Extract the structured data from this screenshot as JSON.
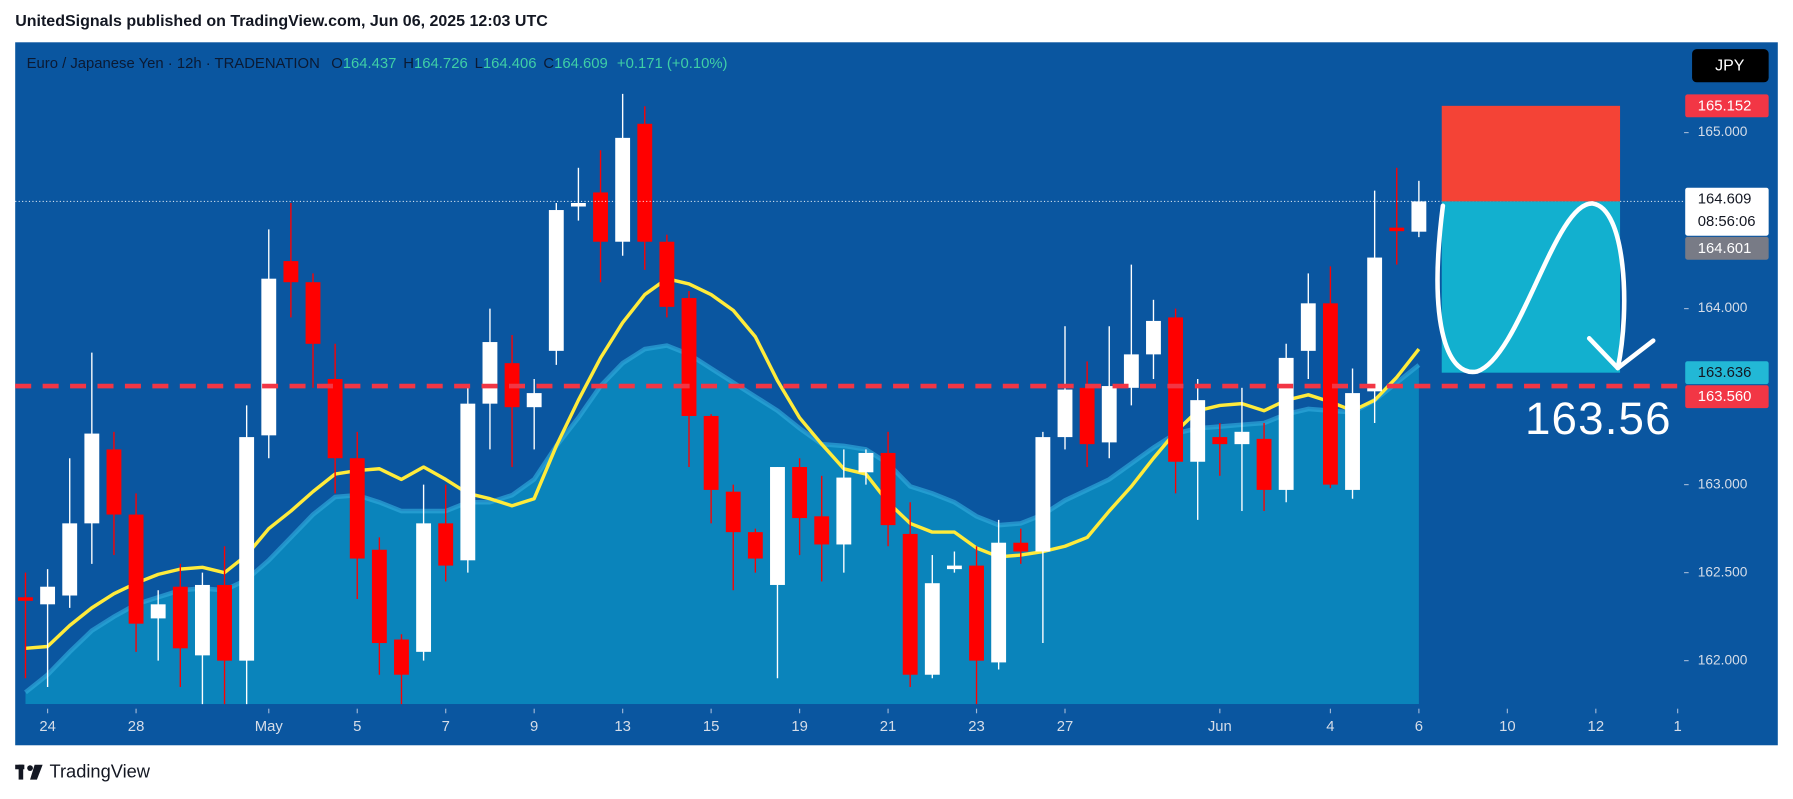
{
  "header": "UnitedSignals published on TradingView.com, Jun 06, 2025 12:03 UTC",
  "footer": "TradingView",
  "chart_data": {
    "type": "candlestick",
    "title": "Euro / Japanese Yen · 12h · TRADENATION",
    "ohlc_legend": [
      {
        "key": "O",
        "value": "164.437"
      },
      {
        "key": "H",
        "value": "164.726"
      },
      {
        "key": "L",
        "value": "164.406"
      },
      {
        "key": "C",
        "value": "164.609"
      }
    ],
    "change": "+0.171 (+0.10%)",
    "currency": "JPY",
    "up_color": "#ffffff",
    "down_color": "#ff0000",
    "open": [
      162.36,
      162.32,
      162.37,
      162.78,
      163.2,
      162.83,
      162.24,
      162.42,
      162.03,
      162.43,
      162.0,
      163.28,
      164.27,
      164.15,
      163.6,
      163.15,
      162.63,
      162.12,
      162.05,
      162.78,
      162.57,
      163.46,
      163.69,
      163.44,
      163.76,
      164.58,
      164.66,
      164.38,
      165.05,
      164.38,
      164.06,
      163.39,
      162.96,
      162.73,
      162.43,
      163.1,
      162.82,
      162.66,
      163.07,
      163.18,
      162.72,
      161.92,
      162.52,
      162.54,
      161.99,
      162.67,
      162.62,
      163.27,
      163.55,
      163.24,
      163.55,
      163.74,
      163.95,
      163.13,
      163.27,
      163.23,
      163.26,
      162.97,
      163.76,
      164.03,
      162.97,
      163.53,
      164.46,
      164.437
    ],
    "high": [
      162.5,
      162.52,
      163.15,
      163.75,
      163.3,
      162.95,
      162.4,
      162.55,
      162.5,
      162.65,
      163.45,
      164.45,
      164.6,
      164.2,
      163.8,
      163.3,
      162.7,
      162.15,
      163.0,
      163.0,
      163.55,
      164.0,
      163.85,
      163.6,
      164.6,
      164.8,
      164.9,
      165.22,
      165.15,
      164.42,
      164.1,
      163.4,
      163.0,
      162.75,
      163.1,
      163.15,
      163.05,
      163.2,
      163.2,
      163.3,
      162.9,
      162.6,
      162.62,
      162.65,
      162.8,
      162.75,
      163.3,
      163.9,
      163.7,
      163.9,
      164.25,
      164.05,
      164.0,
      163.6,
      163.35,
      163.55,
      163.35,
      163.8,
      164.2,
      164.24,
      163.66,
      164.67,
      164.8,
      164.726
    ],
    "low": [
      161.9,
      161.85,
      162.3,
      162.55,
      162.6,
      162.05,
      162.0,
      161.85,
      161.75,
      161.75,
      161.75,
      163.15,
      163.95,
      163.55,
      162.95,
      162.35,
      161.92,
      161.75,
      162.0,
      162.45,
      162.5,
      163.2,
      163.1,
      163.2,
      163.68,
      164.5,
      164.15,
      164.3,
      164.22,
      163.95,
      163.1,
      162.78,
      162.4,
      162.5,
      161.9,
      162.6,
      162.45,
      162.5,
      163.0,
      162.65,
      161.85,
      161.9,
      162.5,
      161.75,
      161.95,
      162.55,
      162.1,
      163.2,
      163.1,
      163.15,
      163.45,
      163.6,
      162.95,
      162.8,
      163.05,
      162.85,
      162.85,
      162.9,
      163.6,
      162.98,
      162.92,
      163.35,
      164.25,
      164.406
    ],
    "close": [
      162.34,
      162.42,
      162.78,
      163.29,
      162.83,
      162.21,
      162.32,
      162.07,
      162.43,
      162.0,
      163.27,
      164.17,
      164.15,
      163.8,
      163.15,
      162.58,
      162.1,
      161.92,
      162.78,
      162.54,
      163.46,
      163.81,
      163.44,
      163.52,
      164.56,
      164.6,
      164.38,
      164.97,
      164.38,
      164.01,
      163.39,
      162.97,
      162.73,
      162.58,
      163.1,
      162.81,
      162.66,
      163.04,
      163.18,
      162.77,
      161.92,
      162.44,
      162.54,
      162.0,
      162.67,
      162.62,
      163.27,
      163.54,
      163.23,
      163.56,
      163.74,
      163.93,
      163.13,
      163.48,
      163.23,
      163.3,
      162.97,
      163.72,
      164.03,
      163.0,
      163.52,
      164.29,
      164.44,
      164.609
    ],
    "lines": [
      {
        "color": "#ffeb3b",
        "values": [
          162.07,
          162.08,
          162.2,
          162.3,
          162.38,
          162.44,
          162.49,
          162.52,
          162.53,
          162.5,
          162.6,
          162.75,
          162.85,
          162.96,
          163.06,
          163.08,
          163.09,
          163.03,
          163.1,
          163.03,
          162.95,
          162.92,
          162.88,
          162.92,
          163.22,
          163.48,
          163.72,
          163.92,
          164.08,
          164.17,
          164.14,
          164.08,
          163.99,
          163.84,
          163.59,
          163.38,
          163.23,
          163.09,
          163.06,
          162.9,
          162.78,
          162.73,
          162.73,
          162.64,
          162.59,
          162.6,
          162.62,
          162.65,
          162.7,
          162.85,
          162.99,
          163.15,
          163.3,
          163.42,
          163.45,
          163.46,
          163.42,
          163.48,
          163.51,
          163.47,
          163.42,
          163.48,
          163.61,
          163.77
        ]
      },
      {
        "color": "#0b8cc0",
        "fill": true,
        "values": [
          161.82,
          161.92,
          162.05,
          162.17,
          162.25,
          162.32,
          162.36,
          162.4,
          162.41,
          162.4,
          162.46,
          162.57,
          162.7,
          162.83,
          162.93,
          162.94,
          162.9,
          162.85,
          162.85,
          162.85,
          162.9,
          162.9,
          162.94,
          163.03,
          163.22,
          163.38,
          163.56,
          163.69,
          163.77,
          163.79,
          163.74,
          163.66,
          163.58,
          163.5,
          163.42,
          163.32,
          163.23,
          163.22,
          163.2,
          163.12,
          162.99,
          162.95,
          162.9,
          162.82,
          162.77,
          162.78,
          162.83,
          162.91,
          162.97,
          163.03,
          163.12,
          163.21,
          163.29,
          163.32,
          163.33,
          163.34,
          163.35,
          163.4,
          163.43,
          163.42,
          163.41,
          163.48,
          163.58,
          163.68
        ]
      }
    ],
    "xlim": [
      -0.465,
      74.99
    ],
    "xticks": [
      {
        "value": 1,
        "label": "24"
      },
      {
        "value": 5,
        "label": "28"
      },
      {
        "value": 11,
        "label": "May"
      },
      {
        "value": 15,
        "label": "5"
      },
      {
        "value": 19,
        "label": "7"
      },
      {
        "value": 23,
        "label": "9"
      },
      {
        "value": 27,
        "label": "13"
      },
      {
        "value": 31,
        "label": "15"
      },
      {
        "value": 35,
        "label": "19"
      },
      {
        "value": 39,
        "label": "21"
      },
      {
        "value": 43,
        "label": "23"
      },
      {
        "value": 47,
        "label": "27"
      },
      {
        "value": 54,
        "label": "Jun"
      },
      {
        "value": 59,
        "label": "4"
      },
      {
        "value": 63,
        "label": "6"
      },
      {
        "value": 67,
        "label": "10"
      },
      {
        "value": 71,
        "label": "12"
      },
      {
        "value": 74.7,
        "label": "1"
      }
    ],
    "ylim": [
      161.727,
      165.513
    ],
    "yticks": [
      {
        "value": 162,
        "label": "162.000"
      },
      {
        "value": 162.5,
        "label": "162.500"
      },
      {
        "value": 163,
        "label": "163.000"
      },
      {
        "value": 164,
        "label": "164.000"
      },
      {
        "value": 165,
        "label": "165.000"
      }
    ],
    "price_tags": [
      {
        "value": 165.152,
        "label": "165.152",
        "color": "#f23645",
        "text_color": "#ffffff"
      },
      {
        "value": 164.609,
        "label": "164.609",
        "color": "#ffffff",
        "text_color": "#131722"
      },
      {
        "value": 164.601,
        "label": "164.601",
        "color": "#787b86",
        "text_color": "#ffffff"
      },
      {
        "value": 163.636,
        "label": "163.636",
        "color": "#22b8d6",
        "text_color": "#131722"
      },
      {
        "value": 163.56,
        "label": "163.560",
        "color": "#f23645",
        "text_color": "#ffffff"
      }
    ],
    "countdown": "08:56:06",
    "annotation": "163.56",
    "position": {
      "stop": 165.152,
      "entry": 164.609,
      "target": 163.636,
      "stop_color": "#f44336",
      "target_color": "#12b0cf"
    }
  }
}
